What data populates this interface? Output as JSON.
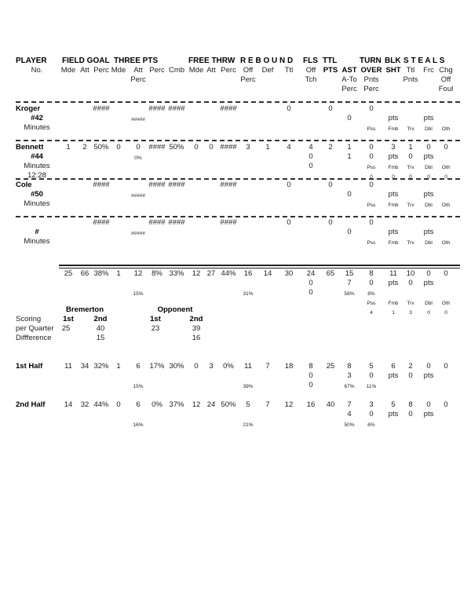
{
  "header": {
    "groups": [
      "PLAYER",
      "FIELD GOAL",
      "THREE PTS",
      "FREE THRW",
      "R E B O U N D",
      "FLS",
      "TTL",
      "TURN",
      "BLK",
      "S T E A L S"
    ],
    "lines": [
      [
        "No.",
        "Mde",
        "Att",
        "Perc",
        "Mde",
        "Att",
        "Perc",
        "Cmb",
        "Mde",
        "Att",
        "Perc",
        "Off",
        "Def",
        "Ttl",
        "Off",
        "PTS",
        "AST",
        "OVER",
        "SHT",
        "Ttl",
        "Frc",
        "Chg"
      ],
      [
        null,
        null,
        null,
        null,
        null,
        "Perc",
        null,
        null,
        null,
        null,
        null,
        "Perc",
        null,
        null,
        "Tch",
        null,
        "A-To",
        "Pnts",
        null,
        "Pnts",
        null,
        "Off"
      ],
      [
        null,
        null,
        null,
        null,
        null,
        null,
        null,
        null,
        null,
        null,
        null,
        null,
        null,
        null,
        null,
        null,
        "Perc",
        "Perc",
        null,
        null,
        null,
        "Foul"
      ]
    ]
  },
  "players": [
    {
      "name": "Kroger",
      "lines": [
        [
          null,
          null,
          null,
          "####",
          null,
          null,
          "####",
          "####",
          null,
          null,
          "####",
          null,
          null,
          "0",
          null,
          "0",
          null,
          "0",
          null,
          null,
          null,
          null
        ],
        [
          "#42",
          null,
          null,
          null,
          null,
          "#####",
          null,
          null,
          null,
          null,
          null,
          null,
          null,
          null,
          null,
          null,
          "0",
          null,
          "pts",
          null,
          "pts",
          null
        ],
        [
          "Minutes",
          null,
          null,
          null,
          null,
          null,
          null,
          null,
          null,
          null,
          null,
          null,
          null,
          null,
          null,
          null,
          null,
          "Pss",
          "Fmb",
          "Trv",
          "Dbl",
          "Oth"
        ]
      ]
    },
    {
      "name": "Bennett",
      "lines": [
        [
          null,
          "1",
          "2",
          "50%",
          "0",
          "0",
          "####",
          "50%",
          "0",
          "0",
          "####",
          "3",
          "1",
          "4",
          "4",
          "2",
          "1",
          "0",
          "3",
          "1",
          "0",
          "0"
        ],
        [
          "#44",
          null,
          null,
          null,
          null,
          "0%",
          null,
          null,
          null,
          null,
          null,
          null,
          null,
          null,
          "0",
          null,
          "1",
          "0",
          "pts",
          "0",
          "pts",
          null
        ],
        [
          "Minutes",
          null,
          null,
          null,
          null,
          null,
          null,
          null,
          null,
          null,
          null,
          null,
          null,
          null,
          "0",
          null,
          null,
          "Pss",
          "Fmb",
          "Trv",
          "Dbl",
          "Oth"
        ],
        [
          "12:28",
          null,
          null,
          null,
          null,
          null,
          null,
          null,
          null,
          null,
          null,
          null,
          null,
          null,
          null,
          null,
          null,
          "0",
          "0",
          "0",
          "0",
          "0"
        ]
      ]
    },
    {
      "name": "Cole",
      "lines": [
        [
          null,
          null,
          null,
          "####",
          null,
          null,
          "####",
          "####",
          null,
          null,
          "####",
          null,
          null,
          "0",
          null,
          "0",
          null,
          "0",
          null,
          null,
          null,
          null
        ],
        [
          "#50",
          null,
          null,
          null,
          null,
          "#####",
          null,
          null,
          null,
          null,
          null,
          null,
          null,
          null,
          null,
          null,
          "0",
          null,
          "pts",
          null,
          "pts",
          null
        ],
        [
          "Minutes",
          null,
          null,
          null,
          null,
          null,
          null,
          null,
          null,
          null,
          null,
          null,
          null,
          null,
          null,
          null,
          null,
          "Pss",
          "Fmb",
          "Trv",
          "Dbl",
          "Oth"
        ]
      ]
    },
    {
      "name": "",
      "lines": [
        [
          null,
          null,
          null,
          "####",
          null,
          null,
          "####",
          "####",
          null,
          null,
          "####",
          null,
          null,
          "0",
          null,
          "0",
          null,
          "0",
          null,
          null,
          null,
          null
        ],
        [
          "#",
          null,
          null,
          null,
          null,
          "#####",
          null,
          null,
          null,
          null,
          null,
          null,
          null,
          null,
          null,
          null,
          "0",
          null,
          "pts",
          null,
          "pts",
          null
        ],
        [
          "Minutes",
          null,
          null,
          null,
          null,
          null,
          null,
          null,
          null,
          null,
          null,
          null,
          null,
          null,
          null,
          null,
          null,
          "Pss",
          "Fmb",
          "Trv",
          "Dbl",
          "Oth"
        ]
      ]
    }
  ],
  "totals": {
    "lines": [
      [
        null,
        "25",
        "66",
        "38%",
        "1",
        "12",
        "8%",
        "33%",
        "12",
        "27",
        "44%",
        "16",
        "14",
        "30",
        "24",
        "65",
        "15",
        "8",
        "11",
        "10",
        "0",
        "0"
      ],
      [
        null,
        null,
        null,
        null,
        null,
        null,
        null,
        null,
        null,
        null,
        null,
        null,
        null,
        null,
        "0",
        null,
        "7",
        "0",
        "pts",
        "0",
        "pts",
        null
      ],
      [
        null,
        null,
        null,
        null,
        null,
        "15%",
        null,
        null,
        null,
        null,
        null,
        "31%",
        null,
        null,
        "0",
        null,
        "58%",
        "8%",
        null,
        null,
        null,
        null
      ],
      [
        null,
        null,
        null,
        null,
        null,
        null,
        null,
        null,
        null,
        null,
        null,
        null,
        null,
        null,
        null,
        null,
        null,
        "Pss",
        "Fmb",
        "Trv",
        "Dbl",
        "Oth"
      ],
      [
        null,
        null,
        null,
        null,
        null,
        null,
        null,
        null,
        null,
        null,
        null,
        null,
        null,
        null,
        null,
        null,
        null,
        "4",
        "1",
        "3",
        "0",
        "0"
      ]
    ]
  },
  "scoring": {
    "team_home": "Bremerton",
    "team_away": "Opponent",
    "labels": [
      "Scoring",
      "per Quarter",
      "Diffference"
    ],
    "quarter_headers": [
      "1st",
      "2nd",
      "1st",
      "2nd"
    ],
    "per_quarter": [
      "25",
      "40",
      "23",
      "39"
    ],
    "difference": [
      "15",
      "16"
    ]
  },
  "halves": [
    {
      "name": "1st Half",
      "lines": [
        [
          null,
          "11",
          "34",
          "32%",
          "1",
          "6",
          "17%",
          "30%",
          "0",
          "3",
          "0%",
          "11",
          "7",
          "18",
          "8",
          "25",
          "8",
          "5",
          "6",
          "2",
          "0",
          "0"
        ],
        [
          null,
          null,
          null,
          null,
          null,
          null,
          null,
          null,
          null,
          null,
          null,
          null,
          null,
          null,
          "0",
          null,
          "3",
          "0",
          "pts",
          "0",
          "pts",
          null
        ],
        [
          null,
          null,
          null,
          null,
          null,
          "15%",
          null,
          null,
          null,
          null,
          null,
          "39%",
          null,
          null,
          "0",
          null,
          "67%",
          "11%",
          null,
          null,
          null,
          null
        ]
      ]
    },
    {
      "name": "2nd Half",
      "lines": [
        [
          null,
          "14",
          "32",
          "44%",
          "0",
          "6",
          "0%",
          "37%",
          "12",
          "24",
          "50%",
          "5",
          "7",
          "12",
          "16",
          "40",
          "7",
          "3",
          "5",
          "8",
          "0",
          "0"
        ],
        [
          null,
          null,
          null,
          null,
          null,
          null,
          null,
          null,
          null,
          null,
          null,
          null,
          null,
          null,
          null,
          null,
          "4",
          "0",
          "pts",
          "0",
          "pts",
          null
        ],
        [
          null,
          null,
          null,
          null,
          null,
          "16%",
          null,
          null,
          null,
          null,
          null,
          "21%",
          null,
          null,
          null,
          null,
          "50%",
          "6%",
          null,
          null,
          null,
          null
        ]
      ]
    }
  ]
}
